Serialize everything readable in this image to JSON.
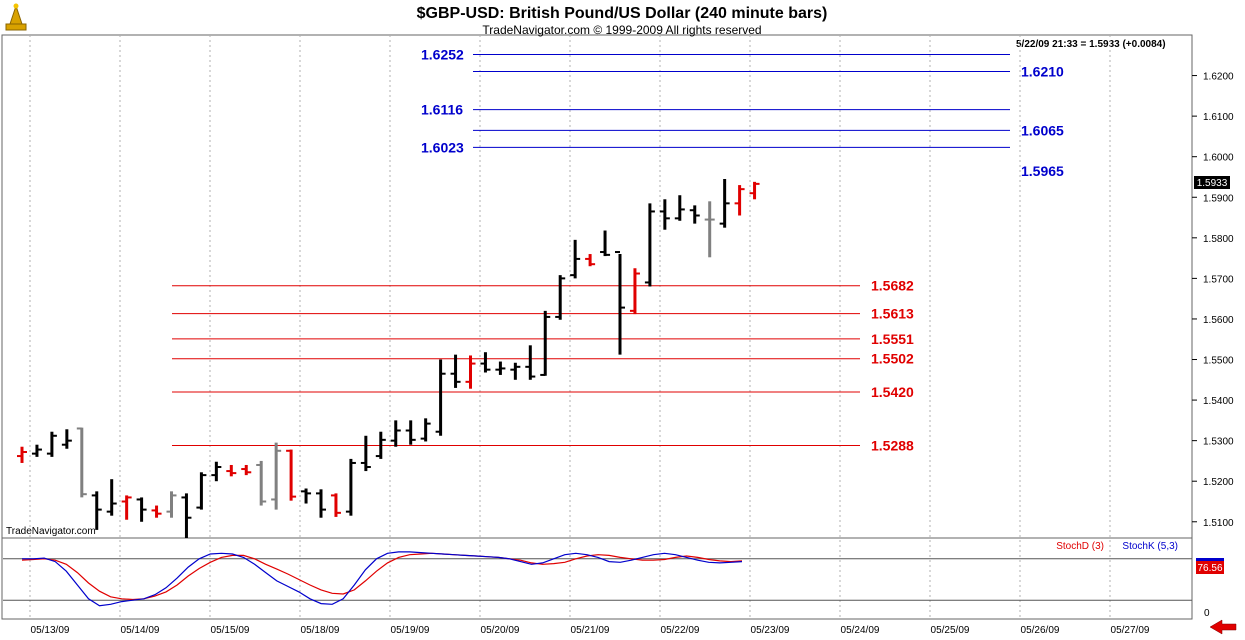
{
  "chart_data": {
    "type": "bar",
    "title": "$GBP-USD:  British Pound/US Dollar  (240 minute bars)",
    "subtitle": "TradeNavigator.com © 1999-2009 All rights reserved",
    "watermark": "TradeNavigator.com",
    "info": "5/22/09 21:33 = 1.5933 (+0.0084)",
    "last_price": "1.5933",
    "ylim": [
      1.506,
      1.63
    ],
    "y_ticks": [
      "1.5100",
      "1.5200",
      "1.5300",
      "1.5400",
      "1.5500",
      "1.5600",
      "1.5700",
      "1.5800",
      "1.5900",
      "1.6000",
      "1.6100",
      "1.6200"
    ],
    "x_ticks": [
      "05/13/09",
      "05/14/09",
      "05/15/09",
      "05/18/09",
      "05/19/09",
      "05/20/09",
      "05/21/09",
      "05/22/09",
      "05/23/09",
      "05/24/09",
      "05/25/09",
      "05/26/09",
      "05/27/09"
    ],
    "bars": [
      {
        "high": 1.5285,
        "low": 1.5245,
        "open": 1.5262,
        "close": 1.5272,
        "color": "red"
      },
      {
        "high": 1.529,
        "low": 1.526,
        "open": 1.5268,
        "close": 1.5278,
        "color": "black"
      },
      {
        "high": 1.5322,
        "low": 1.526,
        "open": 1.5268,
        "close": 1.5312,
        "color": "black"
      },
      {
        "high": 1.5328,
        "low": 1.528,
        "open": 1.529,
        "close": 1.53,
        "color": "black"
      },
      {
        "high": 1.5332,
        "low": 1.516,
        "open": 1.533,
        "close": 1.5168,
        "color": "gray"
      },
      {
        "high": 1.5175,
        "low": 1.508,
        "open": 1.5165,
        "close": 1.513,
        "color": "black"
      },
      {
        "high": 1.5205,
        "low": 1.5115,
        "open": 1.5125,
        "close": 1.5145,
        "color": "black"
      },
      {
        "high": 1.5165,
        "low": 1.5105,
        "open": 1.515,
        "close": 1.516,
        "color": "red"
      },
      {
        "high": 1.516,
        "low": 1.51,
        "open": 1.5155,
        "close": 1.513,
        "color": "black"
      },
      {
        "high": 1.514,
        "low": 1.511,
        "open": 1.5128,
        "close": 1.512,
        "color": "red"
      },
      {
        "high": 1.5175,
        "low": 1.511,
        "open": 1.5125,
        "close": 1.5165,
        "color": "gray"
      },
      {
        "high": 1.517,
        "low": 1.506,
        "open": 1.516,
        "close": 1.511,
        "color": "black"
      },
      {
        "high": 1.5222,
        "low": 1.513,
        "open": 1.5135,
        "close": 1.5215,
        "color": "black"
      },
      {
        "high": 1.5248,
        "low": 1.52,
        "open": 1.5215,
        "close": 1.5235,
        "color": "black"
      },
      {
        "high": 1.524,
        "low": 1.5212,
        "open": 1.5225,
        "close": 1.522,
        "color": "red"
      },
      {
        "high": 1.524,
        "low": 1.5215,
        "open": 1.523,
        "close": 1.5222,
        "color": "red"
      },
      {
        "high": 1.525,
        "low": 1.514,
        "open": 1.524,
        "close": 1.515,
        "color": "gray"
      },
      {
        "high": 1.5295,
        "low": 1.513,
        "open": 1.5155,
        "close": 1.5275,
        "color": "gray"
      },
      {
        "high": 1.5278,
        "low": 1.5152,
        "open": 1.5275,
        "close": 1.5162,
        "color": "red"
      },
      {
        "high": 1.5182,
        "low": 1.5145,
        "open": 1.5175,
        "close": 1.517,
        "color": "black"
      },
      {
        "high": 1.518,
        "low": 1.511,
        "open": 1.517,
        "close": 1.513,
        "color": "black"
      },
      {
        "high": 1.517,
        "low": 1.5112,
        "open": 1.5165,
        "close": 1.5122,
        "color": "red"
      },
      {
        "high": 1.5255,
        "low": 1.5115,
        "open": 1.5125,
        "close": 1.5245,
        "color": "black"
      },
      {
        "high": 1.5312,
        "low": 1.5225,
        "open": 1.5245,
        "close": 1.5235,
        "color": "black"
      },
      {
        "high": 1.5322,
        "low": 1.5255,
        "open": 1.5262,
        "close": 1.5302,
        "color": "black"
      },
      {
        "high": 1.535,
        "low": 1.5285,
        "open": 1.53,
        "close": 1.5325,
        "color": "black"
      },
      {
        "high": 1.535,
        "low": 1.529,
        "open": 1.5325,
        "close": 1.5302,
        "color": "black"
      },
      {
        "high": 1.5355,
        "low": 1.5298,
        "open": 1.5305,
        "close": 1.5342,
        "color": "black"
      },
      {
        "high": 1.55,
        "low": 1.5312,
        "open": 1.5322,
        "close": 1.5465,
        "color": "black"
      },
      {
        "high": 1.5512,
        "low": 1.543,
        "open": 1.5465,
        "close": 1.5445,
        "color": "black"
      },
      {
        "high": 1.551,
        "low": 1.5428,
        "open": 1.5445,
        "close": 1.549,
        "color": "red"
      },
      {
        "high": 1.5518,
        "low": 1.5468,
        "open": 1.549,
        "close": 1.5475,
        "color": "black"
      },
      {
        "high": 1.5495,
        "low": 1.5462,
        "open": 1.5475,
        "close": 1.5478,
        "color": "black"
      },
      {
        "high": 1.5492,
        "low": 1.545,
        "open": 1.5475,
        "close": 1.5482,
        "color": "black"
      },
      {
        "high": 1.5535,
        "low": 1.545,
        "open": 1.5482,
        "close": 1.5458,
        "color": "black"
      },
      {
        "high": 1.562,
        "low": 1.546,
        "open": 1.5462,
        "close": 1.5605,
        "color": "black"
      },
      {
        "high": 1.5708,
        "low": 1.5598,
        "open": 1.5605,
        "close": 1.57,
        "color": "black"
      },
      {
        "high": 1.5795,
        "low": 1.57,
        "open": 1.5708,
        "close": 1.5748,
        "color": "black"
      },
      {
        "high": 1.576,
        "low": 1.573,
        "open": 1.5748,
        "close": 1.5735,
        "color": "red"
      },
      {
        "high": 1.5818,
        "low": 1.5755,
        "open": 1.5765,
        "close": 1.5758,
        "color": "black"
      },
      {
        "high": 1.576,
        "low": 1.5512,
        "open": 1.5765,
        "close": 1.5628,
        "color": "black"
      },
      {
        "high": 1.5725,
        "low": 1.5612,
        "open": 1.562,
        "close": 1.5712,
        "color": "red"
      },
      {
        "high": 1.5885,
        "low": 1.568,
        "open": 1.569,
        "close": 1.5865,
        "color": "black"
      },
      {
        "high": 1.5895,
        "low": 1.582,
        "open": 1.5865,
        "close": 1.5848,
        "color": "black"
      },
      {
        "high": 1.5905,
        "low": 1.5842,
        "open": 1.5848,
        "close": 1.587,
        "color": "black"
      },
      {
        "high": 1.588,
        "low": 1.5835,
        "open": 1.5868,
        "close": 1.5855,
        "color": "black"
      },
      {
        "high": 1.589,
        "low": 1.5752,
        "open": 1.5845,
        "close": 1.5845,
        "color": "gray"
      },
      {
        "high": 1.5945,
        "low": 1.5825,
        "open": 1.5835,
        "close": 1.5885,
        "color": "black"
      },
      {
        "high": 1.593,
        "low": 1.5855,
        "open": 1.5885,
        "close": 1.592,
        "color": "red"
      },
      {
        "high": 1.5938,
        "low": 1.5895,
        "open": 1.591,
        "close": 1.5933,
        "color": "red"
      }
    ],
    "resistance_levels": [
      {
        "label": "1.6252",
        "value": 1.6252,
        "label_side": "left"
      },
      {
        "label": "1.6210",
        "value": 1.621,
        "label_side": "right"
      },
      {
        "label": "1.6116",
        "value": 1.6116,
        "label_side": "left"
      },
      {
        "label": "1.6065",
        "value": 1.6065,
        "label_side": "right"
      },
      {
        "label": "1.6023",
        "value": 1.6023,
        "label_side": "left"
      },
      {
        "label": "1.5965",
        "value": 1.5965,
        "label_side": "right",
        "line": false
      }
    ],
    "support_levels": [
      {
        "label": "1.5682",
        "value": 1.5682
      },
      {
        "label": "1.5613",
        "value": 1.5613
      },
      {
        "label": "1.5551",
        "value": 1.5551
      },
      {
        "label": "1.5502",
        "value": 1.5502
      },
      {
        "label": "1.5420",
        "value": 1.542
      },
      {
        "label": "1.5288",
        "value": 1.5288
      }
    ],
    "stochastic": {
      "legend_d": "StochD (3)",
      "legend_k": "StochK (5,3)",
      "value_label": "76.56",
      "zero_label": "0",
      "ylim": [
        0,
        100
      ],
      "levels": [
        80,
        20
      ],
      "stoch_d": [
        78,
        79,
        80,
        78,
        72,
        60,
        45,
        33,
        25,
        22,
        21,
        22,
        26,
        32,
        42,
        55,
        66,
        75,
        82,
        85,
        85,
        80,
        72,
        65,
        58,
        50,
        42,
        35,
        30,
        29,
        35,
        48,
        62,
        74,
        82,
        86,
        87,
        88,
        87,
        86,
        85,
        84,
        83,
        82,
        80,
        78,
        74,
        72,
        73,
        75,
        80,
        84,
        86,
        85,
        82,
        80,
        78,
        78,
        79,
        82,
        84,
        82,
        79,
        77,
        76,
        77
      ],
      "stoch_k": [
        80,
        80,
        81,
        76,
        62,
        42,
        22,
        12,
        14,
        18,
        20,
        22,
        28,
        38,
        52,
        68,
        80,
        87,
        88,
        87,
        82,
        72,
        60,
        48,
        40,
        32,
        22,
        15,
        14,
        22,
        42,
        64,
        80,
        88,
        90,
        90,
        89,
        88,
        87,
        86,
        85,
        84,
        83,
        82,
        80,
        76,
        72,
        74,
        80,
        86,
        88,
        86,
        82,
        76,
        75,
        78,
        82,
        86,
        88,
        86,
        82,
        78,
        75,
        74,
        75,
        76
      ]
    }
  }
}
